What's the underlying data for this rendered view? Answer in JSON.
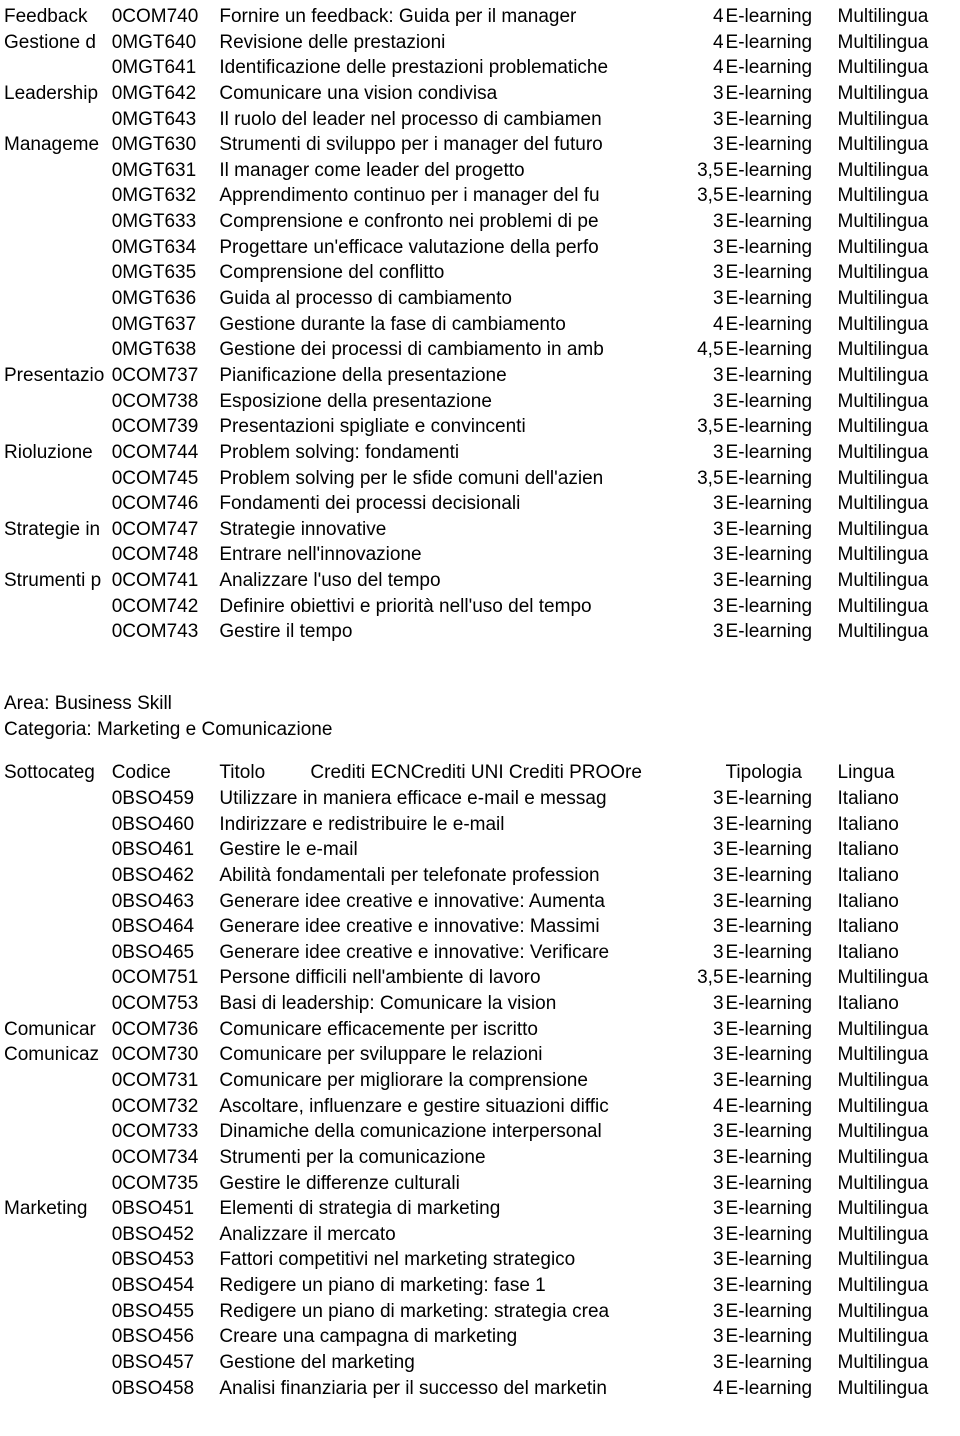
{
  "table1_rows": [
    {
      "sub": "Feedback",
      "code": "0COM740",
      "title": "Fornire un feedback: Guida per il manager",
      "ore": "4",
      "tip": "E-learning",
      "lang": "Multilingua"
    },
    {
      "sub": "Gestione d",
      "code": "0MGT640",
      "title": "Revisione delle prestazioni",
      "ore": "4",
      "tip": "E-learning",
      "lang": "Multilingua"
    },
    {
      "sub": "",
      "code": "0MGT641",
      "title": "Identificazione delle prestazioni problematiche",
      "ore": "4",
      "tip": "E-learning",
      "lang": "Multilingua"
    },
    {
      "sub": "Leadership",
      "code": "0MGT642",
      "title": "Comunicare una vision condivisa",
      "ore": "3",
      "tip": "E-learning",
      "lang": "Multilingua"
    },
    {
      "sub": "",
      "code": "0MGT643",
      "title": "Il ruolo del leader nel processo di cambiamen",
      "ore": "3",
      "tip": "E-learning",
      "lang": "Multilingua"
    },
    {
      "sub": "Manageme",
      "code": "0MGT630",
      "title": "Strumenti di sviluppo per i manager del futuro",
      "ore": "3",
      "tip": "E-learning",
      "lang": "Multilingua"
    },
    {
      "sub": "",
      "code": "0MGT631",
      "title": "Il manager come leader del progetto",
      "ore": "3,5",
      "tip": "E-learning",
      "lang": "Multilingua"
    },
    {
      "sub": "",
      "code": "0MGT632",
      "title": "Apprendimento continuo per i manager del fu",
      "ore": "3,5",
      "tip": "E-learning",
      "lang": "Multilingua"
    },
    {
      "sub": "",
      "code": "0MGT633",
      "title": "Comprensione e confronto nei problemi di pe",
      "ore": "3",
      "tip": "E-learning",
      "lang": "Multilingua"
    },
    {
      "sub": "",
      "code": "0MGT634",
      "title": "Progettare un'efficace valutazione della perfo",
      "ore": "3",
      "tip": "E-learning",
      "lang": "Multilingua"
    },
    {
      "sub": "",
      "code": "0MGT635",
      "title": "Comprensione del conflitto",
      "ore": "3",
      "tip": "E-learning",
      "lang": "Multilingua"
    },
    {
      "sub": "",
      "code": "0MGT636",
      "title": "Guida al processo di cambiamento",
      "ore": "3",
      "tip": "E-learning",
      "lang": "Multilingua"
    },
    {
      "sub": "",
      "code": "0MGT637",
      "title": "Gestione durante la fase di cambiamento",
      "ore": "4",
      "tip": "E-learning",
      "lang": "Multilingua"
    },
    {
      "sub": "",
      "code": "0MGT638",
      "title": "Gestione dei processi di cambiamento in amb",
      "ore": "4,5",
      "tip": "E-learning",
      "lang": "Multilingua"
    },
    {
      "sub": "Presentazio",
      "code": "0COM737",
      "title": "Pianificazione della presentazione",
      "ore": "3",
      "tip": "E-learning",
      "lang": "Multilingua"
    },
    {
      "sub": "",
      "code": "0COM738",
      "title": "Esposizione della presentazione",
      "ore": "3",
      "tip": "E-learning",
      "lang": "Multilingua"
    },
    {
      "sub": "",
      "code": "0COM739",
      "title": "Presentazioni spigliate e convincenti",
      "ore": "3,5",
      "tip": "E-learning",
      "lang": "Multilingua"
    },
    {
      "sub": "Rioluzione",
      "code": "0COM744",
      "title": "Problem solving: fondamenti",
      "ore": "3",
      "tip": "E-learning",
      "lang": "Multilingua"
    },
    {
      "sub": "",
      "code": "0COM745",
      "title": "Problem solving per le sfide comuni dell'azien",
      "ore": "3,5",
      "tip": "E-learning",
      "lang": "Multilingua"
    },
    {
      "sub": "",
      "code": "0COM746",
      "title": "Fondamenti dei processi decisionali",
      "ore": "3",
      "tip": "E-learning",
      "lang": "Multilingua"
    },
    {
      "sub": "Strategie in",
      "code": "0COM747",
      "title": "Strategie innovative",
      "ore": "3",
      "tip": "E-learning",
      "lang": "Multilingua"
    },
    {
      "sub": "",
      "code": "0COM748",
      "title": "Entrare nell'innovazione",
      "ore": "3",
      "tip": "E-learning",
      "lang": "Multilingua"
    },
    {
      "sub": "Strumenti p",
      "code": "0COM741",
      "title": "Analizzare l'uso del tempo",
      "ore": "3",
      "tip": "E-learning",
      "lang": "Multilingua"
    },
    {
      "sub": "",
      "code": "0COM742",
      "title": "Definire obiettivi e priorità nell'uso del tempo",
      "ore": "3",
      "tip": "E-learning",
      "lang": "Multilingua"
    },
    {
      "sub": "",
      "code": "0COM743",
      "title": "Gestire il tempo",
      "ore": "3",
      "tip": "E-learning",
      "lang": "Multilingua"
    }
  ],
  "section2": {
    "area_label": "Area: Business Skill",
    "cat_label": "Categoria: Marketing e Comunicazione",
    "headers": {
      "sub": "Sottocateg",
      "code": "Codice",
      "title": "Titolo",
      "mid": "Crediti ECNCrediti UNI Crediti PROOre",
      "tip": "Tipologia",
      "lang": "Lingua"
    }
  },
  "table2_rows": [
    {
      "sub": "",
      "code": "0BSO459",
      "title": "Utilizzare in maniera efficace e-mail e messag",
      "ore": "3",
      "tip": "E-learning",
      "lang": "Italiano"
    },
    {
      "sub": "",
      "code": "0BSO460",
      "title": "Indirizzare e redistribuire le e-mail",
      "ore": "3",
      "tip": "E-learning",
      "lang": "Italiano"
    },
    {
      "sub": "",
      "code": "0BSO461",
      "title": "Gestire le e-mail",
      "ore": "3",
      "tip": "E-learning",
      "lang": "Italiano"
    },
    {
      "sub": "",
      "code": "0BSO462",
      "title": "Abilità fondamentali per telefonate profession",
      "ore": "3",
      "tip": "E-learning",
      "lang": "Italiano"
    },
    {
      "sub": "",
      "code": "0BSO463",
      "title": "Generare idee creative e innovative: Aumenta",
      "ore": "3",
      "tip": "E-learning",
      "lang": "Italiano"
    },
    {
      "sub": "",
      "code": "0BSO464",
      "title": "Generare idee creative e innovative: Massimi",
      "ore": "3",
      "tip": "E-learning",
      "lang": "Italiano"
    },
    {
      "sub": "",
      "code": "0BSO465",
      "title": "Generare idee creative e innovative: Verificare",
      "ore": "3",
      "tip": "E-learning",
      "lang": "Italiano"
    },
    {
      "sub": "",
      "code": "0COM751",
      "title": "Persone difficili nell'ambiente di lavoro",
      "ore": "3,5",
      "tip": "E-learning",
      "lang": "Multilingua"
    },
    {
      "sub": "",
      "code": "0COM753",
      "title": "Basi di leadership: Comunicare la vision",
      "ore": "3",
      "tip": "E-learning",
      "lang": "Italiano"
    },
    {
      "sub": "Comunicar",
      "code": "0COM736",
      "title": "Comunicare efficacemente per iscritto",
      "ore": "3",
      "tip": "E-learning",
      "lang": "Multilingua"
    },
    {
      "sub": "Comunicaz",
      "code": "0COM730",
      "title": "Comunicare per sviluppare le relazioni",
      "ore": "3",
      "tip": "E-learning",
      "lang": "Multilingua"
    },
    {
      "sub": "",
      "code": "0COM731",
      "title": "Comunicare per migliorare la comprensione",
      "ore": "3",
      "tip": "E-learning",
      "lang": "Multilingua"
    },
    {
      "sub": "",
      "code": "0COM732",
      "title": "Ascoltare, influenzare e gestire situazioni diffic",
      "ore": "4",
      "tip": "E-learning",
      "lang": "Multilingua"
    },
    {
      "sub": "",
      "code": "0COM733",
      "title": "Dinamiche della comunicazione interpersonal",
      "ore": "3",
      "tip": "E-learning",
      "lang": "Multilingua"
    },
    {
      "sub": "",
      "code": "0COM734",
      "title": "Strumenti per la comunicazione",
      "ore": "3",
      "tip": "E-learning",
      "lang": "Multilingua"
    },
    {
      "sub": "",
      "code": "0COM735",
      "title": "Gestire le differenze culturali",
      "ore": "3",
      "tip": "E-learning",
      "lang": "Multilingua"
    },
    {
      "sub": "Marketing",
      "code": "0BSO451",
      "title": "Elementi di strategia di marketing",
      "ore": "3",
      "tip": "E-learning",
      "lang": "Multilingua"
    },
    {
      "sub": "",
      "code": "0BSO452",
      "title": "Analizzare il mercato",
      "ore": "3",
      "tip": "E-learning",
      "lang": "Multilingua"
    },
    {
      "sub": "",
      "code": "0BSO453",
      "title": "Fattori competitivi nel marketing strategico",
      "ore": "3",
      "tip": "E-learning",
      "lang": "Multilingua"
    },
    {
      "sub": "",
      "code": "0BSO454",
      "title": "Redigere un piano di marketing: fase 1",
      "ore": "3",
      "tip": "E-learning",
      "lang": "Multilingua"
    },
    {
      "sub": "",
      "code": "0BSO455",
      "title": "Redigere un piano di marketing: strategia crea",
      "ore": "3",
      "tip": "E-learning",
      "lang": "Multilingua"
    },
    {
      "sub": "",
      "code": "0BSO456",
      "title": "Creare una campagna di marketing",
      "ore": "3",
      "tip": "E-learning",
      "lang": "Multilingua"
    },
    {
      "sub": "",
      "code": "0BSO457",
      "title": "Gestione del marketing",
      "ore": "3",
      "tip": "E-learning",
      "lang": "Multilingua"
    },
    {
      "sub": "",
      "code": "0BSO458",
      "title": "Analisi finanziaria per il successo del marketin",
      "ore": "4",
      "tip": "E-learning",
      "lang": "Multilingua"
    }
  ]
}
